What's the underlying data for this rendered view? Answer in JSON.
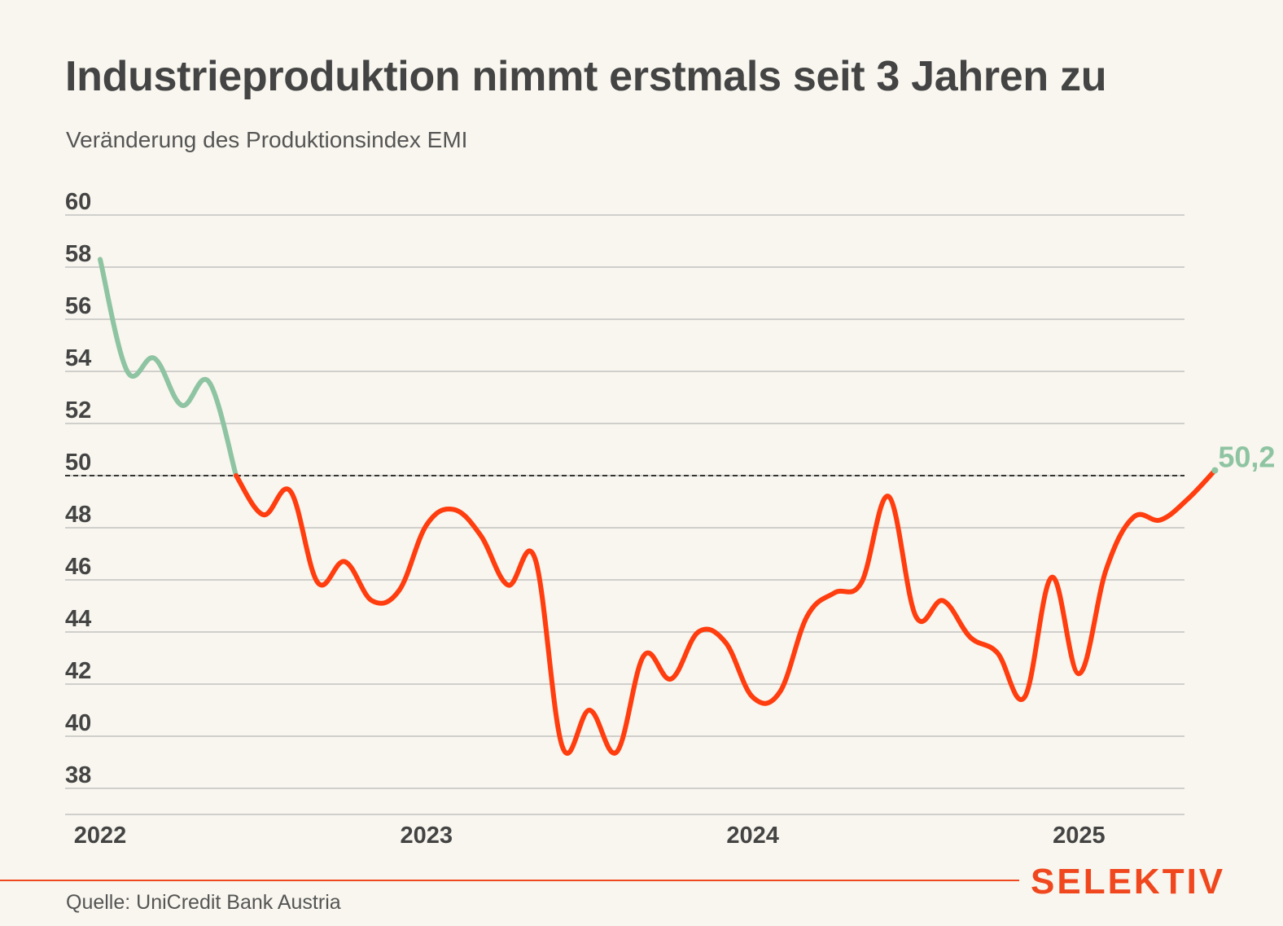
{
  "header": {
    "title": "Industrieproduktion nimmt erstmals seit 3 Jahren zu",
    "subtitle": "Veränderung des Produktionsindex EMI"
  },
  "footer": {
    "source": "Quelle: UniCredit Bank Austria",
    "brand": "SELEKTIV"
  },
  "colors": {
    "above_threshold": "#8ec4a2",
    "below_threshold": "#ff3d0f",
    "brand": "#f0471e",
    "gridline": "#b8b8b8",
    "threshold_line": "#333333",
    "background": "#f8f6ee"
  },
  "chart_data": {
    "type": "line",
    "title": "Industrieproduktion nimmt erstmals seit 3 Jahren zu",
    "subtitle": "Veränderung des Produktionsindex EMI",
    "xlabel": "",
    "ylabel": "",
    "ylim": [
      37,
      60
    ],
    "yticks": [
      "60",
      "58",
      "56",
      "54",
      "52",
      "50",
      "48",
      "46",
      "44",
      "42",
      "40",
      "38"
    ],
    "xticks": [
      "2022",
      "2023",
      "2024",
      "2025"
    ],
    "grid": true,
    "threshold": 50,
    "end_label": "50,2",
    "series": [
      {
        "start": "2022-01",
        "values": [
          58.3,
          54.0,
          54.5,
          52.7,
          53.6,
          50.0,
          48.5,
          49.4,
          45.9,
          46.7,
          45.2,
          45.6,
          48.1,
          48.7,
          47.7,
          45.8,
          46.8,
          39.6,
          41.0,
          39.4,
          43.1,
          42.2,
          44.0,
          43.6,
          41.5,
          41.7,
          44.6,
          45.5,
          45.9,
          49.2,
          44.6,
          45.2,
          43.8,
          43.2,
          41.5,
          46.1,
          42.4,
          46.4,
          48.4,
          48.3,
          49.1,
          50.2
        ]
      }
    ]
  }
}
